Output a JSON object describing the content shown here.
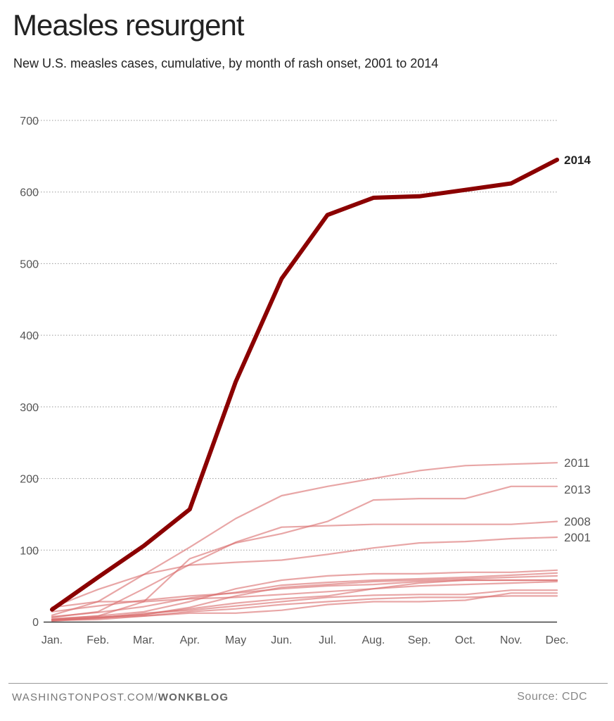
{
  "header": {
    "title": "Measles resurgent",
    "subtitle": "New U.S. measles cases, cumulative, by month of rash onset, 2001 to 2014"
  },
  "footer": {
    "source_site": "WASHINGTONPOST.COM/",
    "source_section": "WONKBLOG",
    "credit": "Source: CDC"
  },
  "colors": {
    "highlight": "#8b0000",
    "background_lines": "#d96b6b",
    "grid": "#999999",
    "text": "#222222",
    "axis_text": "#555555"
  },
  "chart_data": {
    "type": "line",
    "title": "Measles resurgent",
    "subtitle": "New U.S. measles cases, cumulative, by month of rash onset, 2001 to 2014",
    "xlabel": "",
    "ylabel": "",
    "categories": [
      "Jan.",
      "Feb.",
      "Mar.",
      "Apr.",
      "May",
      "Jun.",
      "Jul.",
      "Aug.",
      "Sep.",
      "Oct.",
      "Nov.",
      "Dec."
    ],
    "ylim": [
      0,
      700
    ],
    "yticks": [
      0,
      100,
      200,
      300,
      400,
      500,
      600,
      700
    ],
    "grid": "horizontal dotted",
    "highlight_series": "2014",
    "series": [
      {
        "name": "2014",
        "highlight": true,
        "label": "2014",
        "values": [
          17,
          62,
          106,
          157,
          335,
          479,
          568,
          592,
          594,
          603,
          612,
          645
        ]
      },
      {
        "name": "2011",
        "label": "2011",
        "values": [
          9,
          28,
          66,
          104,
          144,
          176,
          189,
          200,
          211,
          218,
          220,
          222
        ]
      },
      {
        "name": "2013",
        "label": "2013",
        "values": [
          3,
          8,
          28,
          88,
          110,
          123,
          140,
          170,
          172,
          172,
          189,
          189
        ]
      },
      {
        "name": "2008",
        "label": "2008",
        "values": [
          6,
          14,
          46,
          80,
          111,
          132,
          134,
          136,
          136,
          136,
          136,
          140
        ]
      },
      {
        "name": "2001",
        "label": "2001",
        "values": [
          20,
          45,
          66,
          79,
          83,
          86,
          94,
          103,
          110,
          112,
          116,
          118
        ]
      },
      {
        "values": [
          4,
          8,
          14,
          28,
          46,
          58,
          64,
          67,
          67,
          69,
          69,
          72
        ]
      },
      {
        "values": [
          7,
          13,
          21,
          33,
          41,
          51,
          55,
          58,
          60,
          62,
          65,
          68
        ]
      },
      {
        "values": [
          2,
          6,
          10,
          20,
          36,
          48,
          52,
          56,
          58,
          60,
          62,
          64
        ]
      },
      {
        "values": [
          14,
          22,
          30,
          36,
          40,
          46,
          50,
          52,
          56,
          58,
          58,
          58
        ]
      },
      {
        "values": [
          3,
          6,
          10,
          18,
          26,
          32,
          36,
          46,
          54,
          58,
          58,
          58
        ]
      },
      {
        "values": [
          20,
          28,
          28,
          32,
          34,
          38,
          42,
          46,
          50,
          52,
          54,
          56
        ]
      },
      {
        "values": [
          2,
          5,
          12,
          16,
          22,
          28,
          34,
          37,
          38,
          38,
          44,
          44
        ]
      },
      {
        "values": [
          1,
          5,
          8,
          12,
          12,
          16,
          24,
          28,
          28,
          30,
          40,
          40
        ]
      },
      {
        "values": [
          2,
          3,
          8,
          14,
          18,
          24,
          28,
          32,
          34,
          34,
          36,
          36
        ]
      }
    ]
  }
}
